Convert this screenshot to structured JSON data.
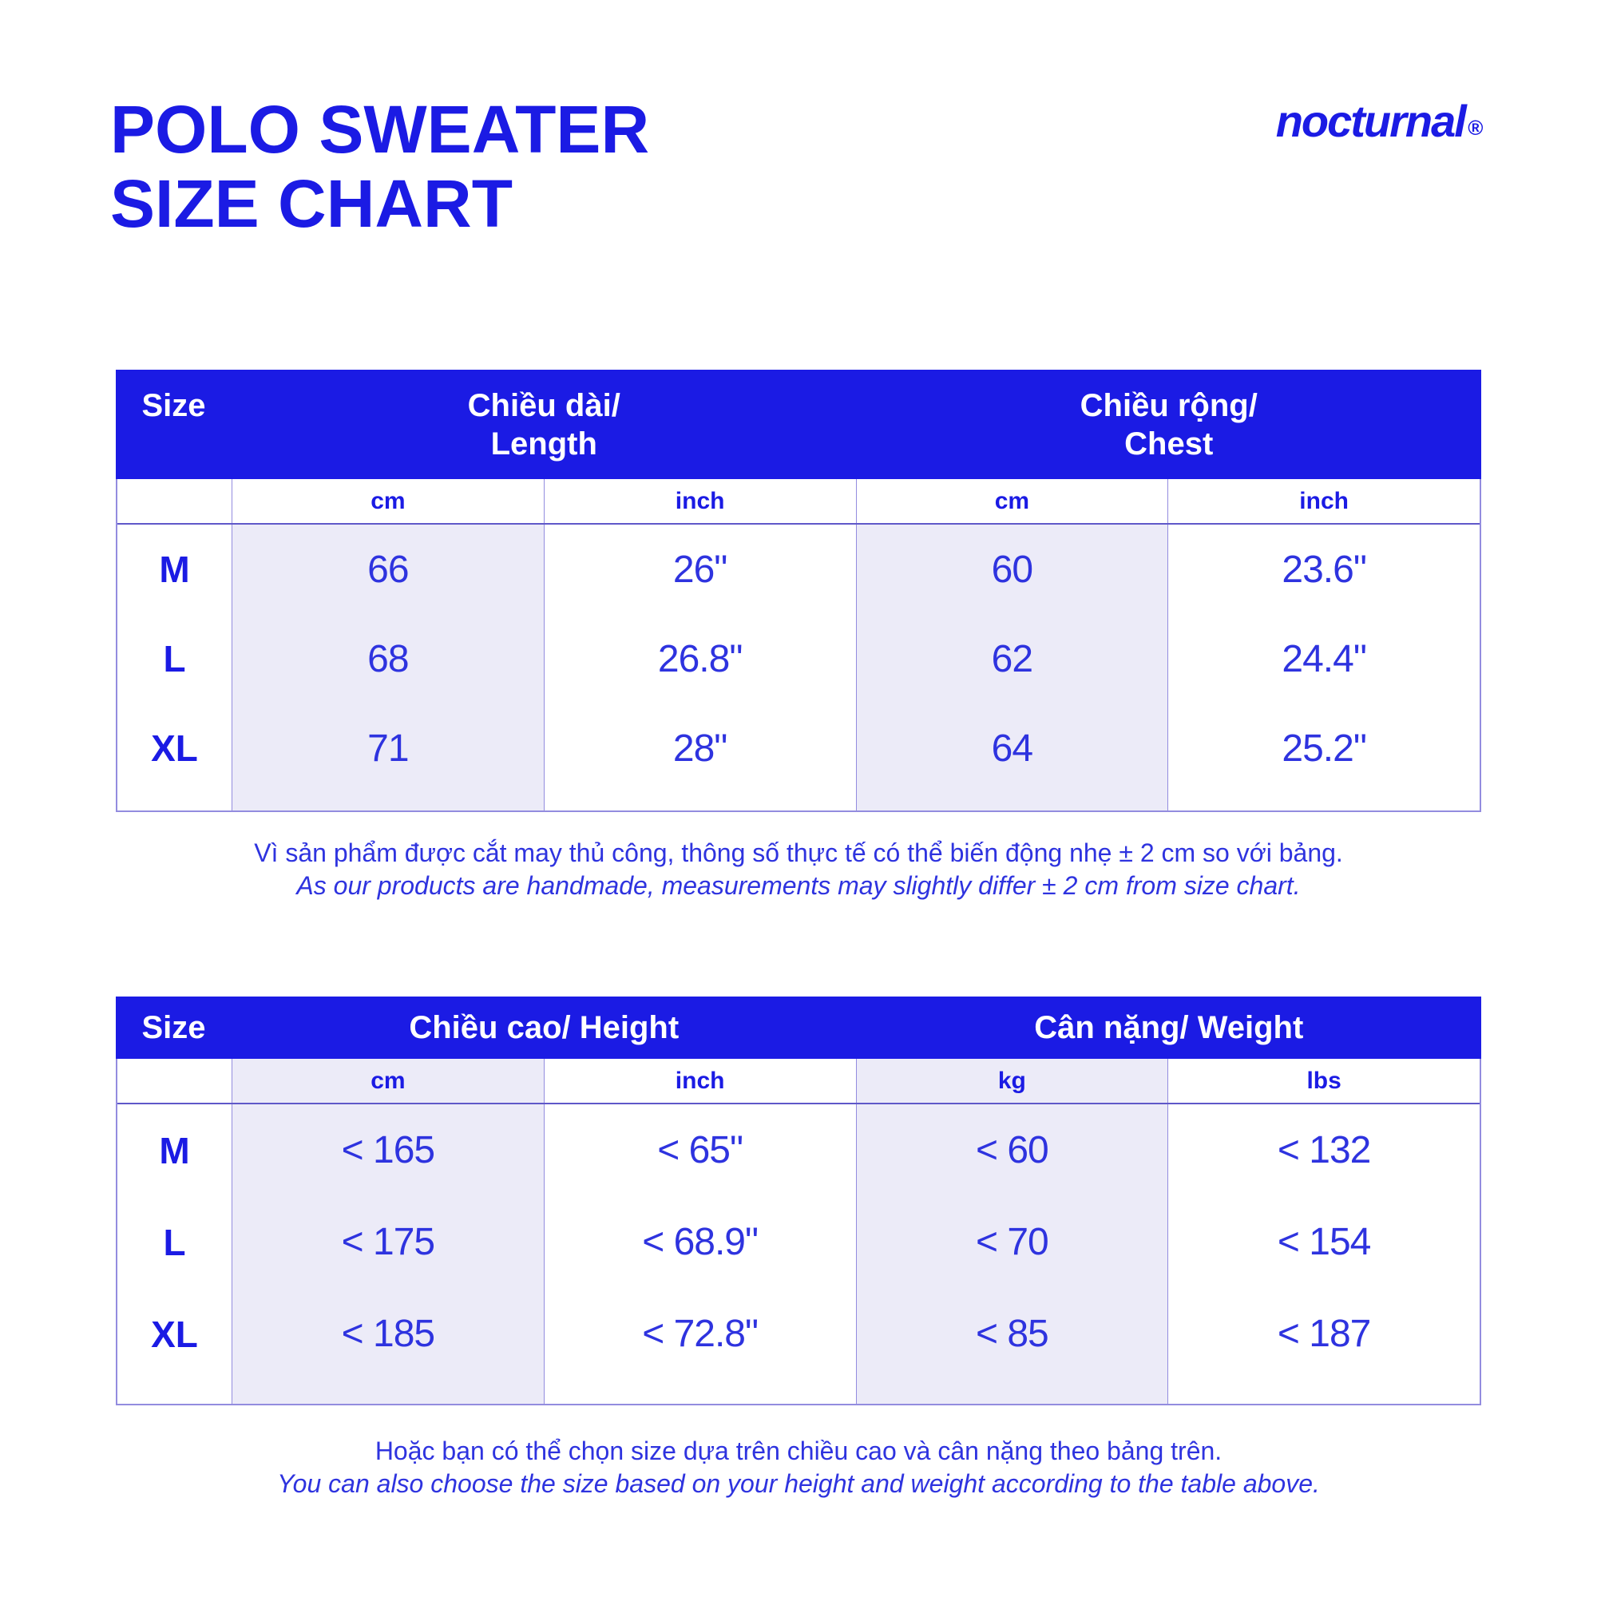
{
  "title": {
    "line1": "POLO SWEATER",
    "line2": "SIZE CHART"
  },
  "brand": {
    "name": "nocturnal",
    "mark": "®"
  },
  "colors": {
    "accent_blue": "#1b1be4",
    "text_blue": "#2e33df",
    "lavender_shade": "#ecebf8",
    "grid_line": "#938cdf"
  },
  "table1": {
    "header": {
      "size": "Size",
      "col1_line1": "Chiều dài/",
      "col1_line2": "Length",
      "col2_line1": "Chiều rộng/",
      "col2_line2": "Chest"
    },
    "subheader": [
      "cm",
      "inch",
      "cm",
      "inch"
    ],
    "rows": [
      {
        "size": "M",
        "values": [
          "66",
          "26\"",
          "60",
          "23.6\""
        ]
      },
      {
        "size": "L",
        "values": [
          "68",
          "26.8\"",
          "62",
          "24.4\""
        ]
      },
      {
        "size": "XL",
        "values": [
          "71",
          "28\"",
          "64",
          "25.2\""
        ]
      }
    ],
    "note_vi": "Vì sản phẩm được cắt may thủ công, thông số thực tế có thể biến động nhẹ ± 2 cm so với bảng.",
    "note_en": "As our products are handmade, measurements may slightly differ ± 2 cm from size chart."
  },
  "table2": {
    "header": {
      "size": "Size",
      "col1": "Chiều cao/ Height",
      "col2": "Cân nặng/ Weight"
    },
    "subheader": [
      "cm",
      "inch",
      "kg",
      "lbs"
    ],
    "rows": [
      {
        "size": "M",
        "values": [
          "< 165",
          "< 65\"",
          "< 60",
          "< 132"
        ]
      },
      {
        "size": "L",
        "values": [
          "< 175",
          "< 68.9\"",
          "< 70",
          "< 154"
        ]
      },
      {
        "size": "XL",
        "values": [
          "< 185",
          "< 72.8\"",
          "< 85",
          "< 187"
        ]
      }
    ],
    "note_vi": "Hoặc bạn có thể chọn size dựa trên chiều cao và cân nặng theo bảng trên.",
    "note_en": "You can also choose the size based on your height and weight according to the table above."
  }
}
